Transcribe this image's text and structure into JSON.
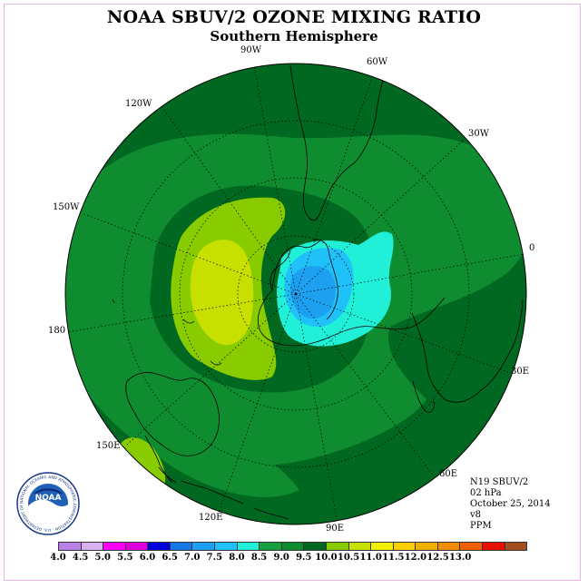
{
  "title": "NOAA SBUV/2 OZONE MIXING RATIO",
  "subtitle": "Southern Hemisphere",
  "longitude_labels": {
    "w90": "90W",
    "w60": "60W",
    "w120": "120W",
    "w30": "30W",
    "w150": "150W",
    "zero": "0",
    "e180": "180",
    "e30": "30E",
    "e150": "150E",
    "e60": "60E",
    "e120": "120E",
    "e90": "90E"
  },
  "info": {
    "satellite": "N19 SBUV/2",
    "level": "02 hPa",
    "date": "October 25, 2014",
    "version": "v8",
    "units": "PPM"
  },
  "logo": {
    "text": "NOAA",
    "ring_text": "NATIONAL OCEANIC AND ATMOSPHERIC ADMINISTRATION · U.S. DEPARTMENT OF COMMERCE"
  },
  "colorbar": {
    "colors": [
      "#b980e8",
      "#d9b0f0",
      "#ff00ff",
      "#e000e0",
      "#0000dd",
      "#1478ea",
      "#1ea0f0",
      "#20c0f8",
      "#20f0d8",
      "#18a040",
      "#108c30",
      "#006820",
      "#88cc00",
      "#c8e000",
      "#f0f000",
      "#f8d000",
      "#f0b000",
      "#f08c00",
      "#f06000",
      "#e81000",
      "#a05020"
    ],
    "labels": [
      "4.0",
      "4.5",
      "5.0",
      "5.5",
      "6.0",
      "6.5",
      "7.0",
      "7.5",
      "8.0",
      "8.5",
      "9.0",
      "9.5",
      "10.0",
      "10.5",
      "11.0",
      "11.5",
      "12.0",
      "12.5",
      "13.0"
    ]
  }
}
